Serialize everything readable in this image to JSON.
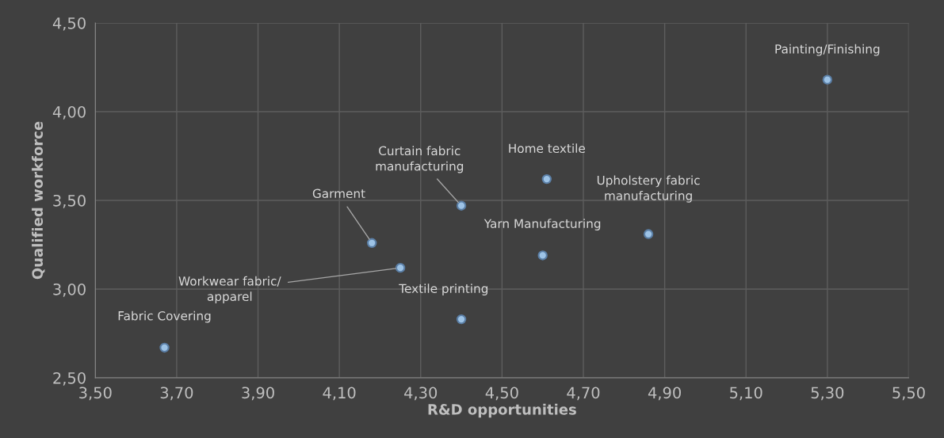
{
  "chart_data": {
    "type": "scatter",
    "xlabel": "R&D opportunities",
    "ylabel": "Qualified workforce",
    "x": [
      3.67,
      4.18,
      4.25,
      4.4,
      4.4,
      4.61,
      4.6,
      4.86,
      5.3
    ],
    "values": [
      2.67,
      3.26,
      3.12,
      3.47,
      2.83,
      3.62,
      3.19,
      3.31,
      4.18
    ],
    "color": "#9dc3e6",
    "marker": "circle",
    "xlim": [
      3.5,
      5.5
    ],
    "ylim": [
      2.5,
      4.5
    ],
    "xticks": [
      {
        "value": 3.5,
        "label": "3,50"
      },
      {
        "value": 3.7,
        "label": "3,70"
      },
      {
        "value": 3.9,
        "label": "3,90"
      },
      {
        "value": 4.1,
        "label": "4,10"
      },
      {
        "value": 4.3,
        "label": "4,30"
      },
      {
        "value": 4.5,
        "label": "4,50"
      },
      {
        "value": 4.7,
        "label": "4,70"
      },
      {
        "value": 4.9,
        "label": "4,90"
      },
      {
        "value": 5.1,
        "label": "5,10"
      },
      {
        "value": 5.3,
        "label": "5,30"
      },
      {
        "value": 5.5,
        "label": "5,50"
      }
    ],
    "yticks": [
      {
        "value": 2.5,
        "label": "2,50"
      },
      {
        "value": 3.0,
        "label": "3,00"
      },
      {
        "value": 3.5,
        "label": "3,50"
      },
      {
        "value": 4.0,
        "label": "4,00"
      },
      {
        "value": 4.5,
        "label": "4,50"
      }
    ],
    "grid": true,
    "legend": false,
    "annotations": [
      {
        "text": "Fabric Covering",
        "x": 3.67,
        "y": 2.67
      },
      {
        "text": "Garment",
        "x": 4.18,
        "y": 3.26
      },
      {
        "text": "Workwear fabric/\napparel",
        "x": 4.25,
        "y": 3.12
      },
      {
        "text": "Curtain fabric\nmanufacturing",
        "x": 4.4,
        "y": 3.47
      },
      {
        "text": "Textile printing",
        "x": 4.4,
        "y": 2.83
      },
      {
        "text": "Home textile",
        "x": 4.61,
        "y": 3.62
      },
      {
        "text": "Yarn Manufacturing",
        "x": 4.6,
        "y": 3.19
      },
      {
        "text": "Upholstery fabric\nmanufacturing",
        "x": 4.86,
        "y": 3.31
      },
      {
        "text": "Painting/Finishing",
        "x": 5.3,
        "y": 4.18
      }
    ]
  }
}
